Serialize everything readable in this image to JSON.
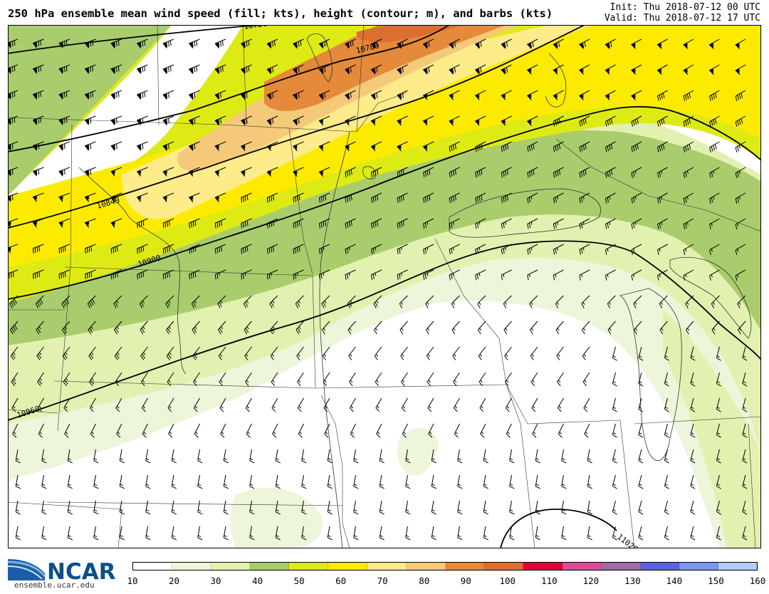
{
  "header": {
    "title": "250 hPa ensemble mean wind speed (fill; kts), height (contour; m), and barbs (kts)",
    "init": "Init: Thu 2018-07-12 00 UTC",
    "valid": "Valid: Thu 2018-07-12 17 UTC"
  },
  "contours": [
    {
      "label": "10720",
      "value": 10720
    },
    {
      "label": "10780",
      "value": 10780
    },
    {
      "label": "10840",
      "value": 10840
    },
    {
      "label": "10900",
      "value": 10900
    },
    {
      "label": "10960",
      "value": 10960
    },
    {
      "label": "11020",
      "value": 11020
    }
  ],
  "colorbar": {
    "ticks": [
      "10",
      "20",
      "30",
      "40",
      "50",
      "60",
      "70",
      "80",
      "90",
      "100",
      "110",
      "120",
      "130",
      "140",
      "150",
      "160"
    ],
    "colors": [
      "#ffffff",
      "#edf5da",
      "#e2f1b0",
      "#a9cd6d",
      "#deea14",
      "#fceb00",
      "#feeb8a",
      "#f4c97a",
      "#e5893a",
      "#dd6e31",
      "#e3003c",
      "#dd4c99",
      "#9d6ca4",
      "#5c63e2",
      "#7d97ee",
      "#b4cbf6"
    ]
  },
  "logo": {
    "name": "NCAR",
    "url": "ensemble.ucar.edu"
  }
}
